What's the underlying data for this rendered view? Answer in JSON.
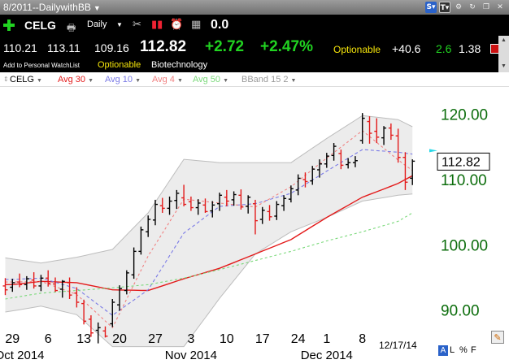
{
  "window": {
    "title": "8/2011--DailywithBB",
    "title_caret": "▼"
  },
  "window_icons": [
    {
      "name": "s-icon",
      "glyph": "S▾",
      "style": "s"
    },
    {
      "name": "t-icon",
      "glyph": "T▾",
      "style": "t"
    },
    {
      "name": "gear-icon",
      "glyph": "⚙",
      "style": "g"
    },
    {
      "name": "refresh-icon",
      "glyph": "↻",
      "style": "g"
    },
    {
      "name": "restore-icon",
      "glyph": "❐",
      "style": "g"
    },
    {
      "name": "close-icon",
      "glyph": "✕",
      "style": "g"
    }
  ],
  "toolbar": {
    "symbol": "CELG",
    "period": "Daily",
    "period_caret": "▼",
    "value": "0.0",
    "icons": {
      "add": "plus-icon",
      "print": "printer-icon",
      "tools": "tools-icon",
      "bars": "bar-chart-icon",
      "alarm": "alarm-clock-icon",
      "calendar": "calendar-icon"
    },
    "glyphs": {
      "print": "🖶",
      "tools": "✂",
      "bars": "▮▮",
      "alarm": "⏰",
      "calendar": "▦"
    }
  },
  "quote": {
    "open": "110.21",
    "high": "113.11",
    "low": "109.16",
    "last": "112.82",
    "change": "+2.72",
    "change_pct": "+2.47%",
    "optionable": "Optionable",
    "value1": "+40.6",
    "value2": "2.6",
    "value3": "1.38"
  },
  "info": {
    "watchlist_link": "Add to Personal WatchList",
    "optionable": "Optionable",
    "industry": "Biotechnology",
    "scroll_up": "▲",
    "scroll_down": "▼"
  },
  "legend": {
    "grip": "⇕",
    "caret": "▼",
    "items": [
      {
        "key": "sym",
        "label": "CELG",
        "color": "#000000"
      },
      {
        "key": "a30",
        "label": "Avg 30",
        "color": "#e31a1a"
      },
      {
        "key": "a10",
        "label": "Avg 10",
        "color": "#7a7ae6"
      },
      {
        "key": "a4",
        "label": "Avg 4",
        "color": "#f08080"
      },
      {
        "key": "a50",
        "label": "Avg 50",
        "color": "#7ad97a"
      },
      {
        "key": "bb",
        "label": "BBand 15 2",
        "color": "#9a9a9a"
      }
    ]
  },
  "chart_data": {
    "type": "ohlc",
    "title": "",
    "xlabel": "",
    "ylabel": "",
    "ylim": [
      84.6,
      124.2
    ],
    "y_ticks": [
      "120.00",
      "110.00",
      "100.00",
      "90.00"
    ],
    "y_tick_values": [
      120,
      110,
      100,
      90
    ],
    "last_price_label": "112.82",
    "last_price": 112.82,
    "x_tick_labels": [
      {
        "label": "29",
        "bar": 1
      },
      {
        "label": "6",
        "bar": 6
      },
      {
        "label": "13",
        "bar": 11
      },
      {
        "label": "20",
        "bar": 16
      },
      {
        "label": "27",
        "bar": 21
      },
      {
        "label": "3",
        "bar": 26
      },
      {
        "label": "10",
        "bar": 31
      },
      {
        "label": "17",
        "bar": 36
      },
      {
        "label": "24",
        "bar": 41
      },
      {
        "label": "1",
        "bar": 45
      },
      {
        "label": "8",
        "bar": 50
      }
    ],
    "month_labels": [
      {
        "label": "Oct 2014",
        "bar": 2
      },
      {
        "label": "Nov 2014",
        "bar": 26
      },
      {
        "label": "Dec 2014",
        "bar": 45
      }
    ],
    "date_reference": "12/17/14",
    "bar_colors": {
      "up": "#000000",
      "down": "#e31a1a"
    },
    "bars": [
      {
        "o": 93.7,
        "h": 94.9,
        "l": 92.3,
        "c": 93.1
      },
      {
        "o": 93.5,
        "h": 94.8,
        "l": 92.8,
        "c": 94.2
      },
      {
        "o": 94.3,
        "h": 95.6,
        "l": 93.5,
        "c": 93.9
      },
      {
        "o": 93.9,
        "h": 95.2,
        "l": 93.1,
        "c": 94.8
      },
      {
        "o": 94.6,
        "h": 95.8,
        "l": 93.3,
        "c": 93.7
      },
      {
        "o": 93.7,
        "h": 95.4,
        "l": 92.9,
        "c": 94.9
      },
      {
        "o": 94.9,
        "h": 96.1,
        "l": 93.6,
        "c": 94.1
      },
      {
        "o": 94.0,
        "h": 95.0,
        "l": 92.8,
        "c": 93.0
      },
      {
        "o": 93.2,
        "h": 94.6,
        "l": 91.9,
        "c": 94.4
      },
      {
        "o": 94.2,
        "h": 95.0,
        "l": 91.7,
        "c": 92.3
      },
      {
        "o": 92.6,
        "h": 93.5,
        "l": 90.4,
        "c": 91.2
      },
      {
        "o": 91.0,
        "h": 91.6,
        "l": 87.8,
        "c": 88.3
      },
      {
        "o": 88.6,
        "h": 89.2,
        "l": 85.9,
        "c": 86.5
      },
      {
        "o": 86.9,
        "h": 88.1,
        "l": 84.9,
        "c": 87.3
      },
      {
        "o": 86.8,
        "h": 87.5,
        "l": 85.8,
        "c": 86.0
      },
      {
        "o": 87.9,
        "h": 91.7,
        "l": 87.4,
        "c": 91.2
      },
      {
        "o": 90.8,
        "h": 93.8,
        "l": 89.9,
        "c": 93.3
      },
      {
        "o": 93.0,
        "h": 96.1,
        "l": 92.4,
        "c": 95.7
      },
      {
        "o": 95.4,
        "h": 99.6,
        "l": 94.8,
        "c": 99.0
      },
      {
        "o": 99.0,
        "h": 102.8,
        "l": 98.5,
        "c": 102.3
      },
      {
        "o": 102.0,
        "h": 104.5,
        "l": 101.2,
        "c": 103.9
      },
      {
        "o": 103.8,
        "h": 106.9,
        "l": 103.0,
        "c": 106.2
      },
      {
        "o": 106.0,
        "h": 107.2,
        "l": 104.9,
        "c": 105.6
      },
      {
        "o": 105.6,
        "h": 107.4,
        "l": 104.6,
        "c": 106.7
      },
      {
        "o": 106.8,
        "h": 108.4,
        "l": 105.5,
        "c": 107.9
      },
      {
        "o": 107.2,
        "h": 109.2,
        "l": 105.9,
        "c": 106.2
      },
      {
        "o": 106.6,
        "h": 107.4,
        "l": 105.2,
        "c": 105.7
      },
      {
        "o": 105.7,
        "h": 107.0,
        "l": 104.6,
        "c": 106.4
      },
      {
        "o": 106.1,
        "h": 107.1,
        "l": 104.9,
        "c": 105.1
      },
      {
        "o": 105.2,
        "h": 106.7,
        "l": 104.2,
        "c": 106.1
      },
      {
        "o": 106.3,
        "h": 108.0,
        "l": 105.2,
        "c": 107.6
      },
      {
        "o": 107.3,
        "h": 108.4,
        "l": 105.9,
        "c": 106.7
      },
      {
        "o": 106.9,
        "h": 108.2,
        "l": 106.0,
        "c": 107.7
      },
      {
        "o": 107.6,
        "h": 108.5,
        "l": 105.4,
        "c": 105.8
      },
      {
        "o": 105.9,
        "h": 107.6,
        "l": 104.8,
        "c": 107.3
      },
      {
        "o": 106.3,
        "h": 106.9,
        "l": 101.6,
        "c": 103.7
      },
      {
        "o": 103.9,
        "h": 105.8,
        "l": 103.2,
        "c": 105.3
      },
      {
        "o": 105.1,
        "h": 106.1,
        "l": 103.7,
        "c": 104.3
      },
      {
        "o": 104.4,
        "h": 106.7,
        "l": 103.8,
        "c": 106.2
      },
      {
        "o": 106.0,
        "h": 107.6,
        "l": 105.2,
        "c": 107.1
      },
      {
        "o": 107.0,
        "h": 109.1,
        "l": 106.5,
        "c": 108.6
      },
      {
        "o": 108.4,
        "h": 110.8,
        "l": 107.6,
        "c": 110.2
      },
      {
        "o": 110.0,
        "h": 111.1,
        "l": 108.8,
        "c": 109.7
      },
      {
        "o": 109.8,
        "h": 112.1,
        "l": 109.2,
        "c": 111.6
      },
      {
        "o": 111.5,
        "h": 113.1,
        "l": 110.3,
        "c": 112.4
      },
      {
        "o": 112.4,
        "h": 114.1,
        "l": 111.8,
        "c": 113.6
      },
      {
        "o": 113.7,
        "h": 115.6,
        "l": 112.9,
        "c": 115.1
      },
      {
        "o": 114.0,
        "h": 114.6,
        "l": 111.6,
        "c": 112.2
      },
      {
        "o": 112.3,
        "h": 113.3,
        "l": 111.7,
        "c": 112.6
      },
      {
        "o": 112.6,
        "h": 113.6,
        "l": 111.9,
        "c": 112.9
      },
      {
        "o": 116.0,
        "h": 120.2,
        "l": 115.5,
        "c": 119.4
      },
      {
        "o": 118.9,
        "h": 119.7,
        "l": 115.5,
        "c": 117.1
      },
      {
        "o": 117.4,
        "h": 119.4,
        "l": 115.6,
        "c": 116.5
      },
      {
        "o": 116.4,
        "h": 118.2,
        "l": 115.3,
        "c": 117.9
      },
      {
        "o": 117.9,
        "h": 118.6,
        "l": 116.1,
        "c": 116.8
      },
      {
        "o": 116.7,
        "h": 117.8,
        "l": 112.6,
        "c": 113.4
      },
      {
        "o": 113.4,
        "h": 114.2,
        "l": 108.4,
        "c": 109.6
      },
      {
        "o": 110.21,
        "h": 113.11,
        "l": 109.16,
        "c": 112.82
      }
    ],
    "series": [
      {
        "key": "avg30",
        "color": "#e31a1a",
        "dash": "",
        "values": [
          null,
          93.9,
          null,
          null,
          null,
          94.4,
          null,
          null,
          null,
          null,
          94.2,
          null,
          null,
          null,
          null,
          93.1,
          null,
          null,
          null,
          null,
          93.0,
          null,
          null,
          null,
          null,
          94.8,
          null,
          null,
          null,
          null,
          96.4,
          null,
          null,
          null,
          null,
          98.6,
          null,
          null,
          null,
          null,
          100.8,
          null,
          null,
          null,
          null,
          104.2,
          null,
          null,
          null,
          null,
          107.3,
          null,
          null,
          null,
          null,
          109.4,
          null,
          110.6
        ]
      },
      {
        "key": "avg10",
        "color": "#7a7ae6",
        "dash": "4,3",
        "values": [
          null,
          94.7,
          null,
          null,
          null,
          94.9,
          null,
          null,
          null,
          null,
          93.3,
          null,
          null,
          null,
          null,
          89.2,
          null,
          null,
          null,
          null,
          93.1,
          null,
          null,
          null,
          null,
          101.8,
          null,
          null,
          null,
          null,
          105.9,
          null,
          null,
          null,
          null,
          106.3,
          null,
          null,
          null,
          null,
          107.9,
          null,
          null,
          null,
          null,
          111.3,
          null,
          null,
          null,
          null,
          114.6,
          null,
          null,
          null,
          null,
          114.2,
          null,
          113.9
        ]
      },
      {
        "key": "avg4",
        "color": "#f08080",
        "dash": "3,3",
        "values": [
          null,
          94.3,
          null,
          null,
          null,
          94.4,
          null,
          null,
          null,
          null,
          92.4,
          null,
          null,
          null,
          null,
          87.3,
          null,
          null,
          null,
          null,
          98.3,
          null,
          null,
          null,
          null,
          107.0,
          null,
          null,
          null,
          null,
          106.4,
          null,
          null,
          null,
          null,
          105.8,
          null,
          null,
          null,
          null,
          108.9,
          null,
          null,
          null,
          null,
          113.3,
          null,
          null,
          null,
          null,
          117.5,
          null,
          null,
          null,
          null,
          113.0,
          null,
          111.4
        ]
      },
      {
        "key": "avg50",
        "color": "#7ad97a",
        "dash": "3,3",
        "values": [
          91.7,
          null,
          null,
          null,
          null,
          92.6,
          null,
          null,
          null,
          null,
          93.0,
          null,
          null,
          null,
          null,
          93.4,
          null,
          null,
          null,
          null,
          93.9,
          null,
          null,
          null,
          null,
          94.9,
          null,
          null,
          null,
          null,
          96.2,
          null,
          null,
          null,
          null,
          97.6,
          null,
          null,
          null,
          null,
          99.0,
          null,
          null,
          null,
          null,
          100.6,
          null,
          null,
          null,
          null,
          102.0,
          null,
          null,
          null,
          null,
          103.6,
          null,
          104.9
        ]
      }
    ],
    "bband": {
      "color": "#bdbdbd",
      "fill": "#ececec",
      "upper": [
        98.0,
        null,
        null,
        null,
        null,
        97.2,
        null,
        null,
        null,
        null,
        98.1,
        null,
        null,
        null,
        null,
        99.3,
        null,
        null,
        null,
        null,
        104.9,
        null,
        null,
        null,
        null,
        113.1,
        null,
        null,
        null,
        null,
        112.6,
        null,
        null,
        null,
        null,
        112.6,
        null,
        null,
        null,
        null,
        112.6,
        null,
        null,
        null,
        null,
        116.3,
        null,
        null,
        null,
        null,
        119.8,
        null,
        null,
        null,
        null,
        119.2,
        null,
        118.1
      ],
      "lower": [
        89.7,
        null,
        null,
        null,
        null,
        90.6,
        null,
        null,
        null,
        null,
        89.3,
        null,
        null,
        null,
        null,
        84.4,
        null,
        null,
        null,
        null,
        84.4,
        null,
        null,
        null,
        null,
        84.4,
        null,
        null,
        null,
        null,
        91.8,
        null,
        null,
        null,
        null,
        98.6,
        null,
        null,
        null,
        null,
        102.0,
        null,
        null,
        null,
        null,
        104.2,
        null,
        null,
        null,
        null,
        106.7,
        null,
        null,
        null,
        null,
        107.6,
        null,
        107.8
      ]
    },
    "price_marker_color": "#2ad7e6"
  },
  "footer": {
    "a": "A",
    "l": "L",
    "pct": "%",
    "f": "F",
    "pencil": "✎"
  }
}
